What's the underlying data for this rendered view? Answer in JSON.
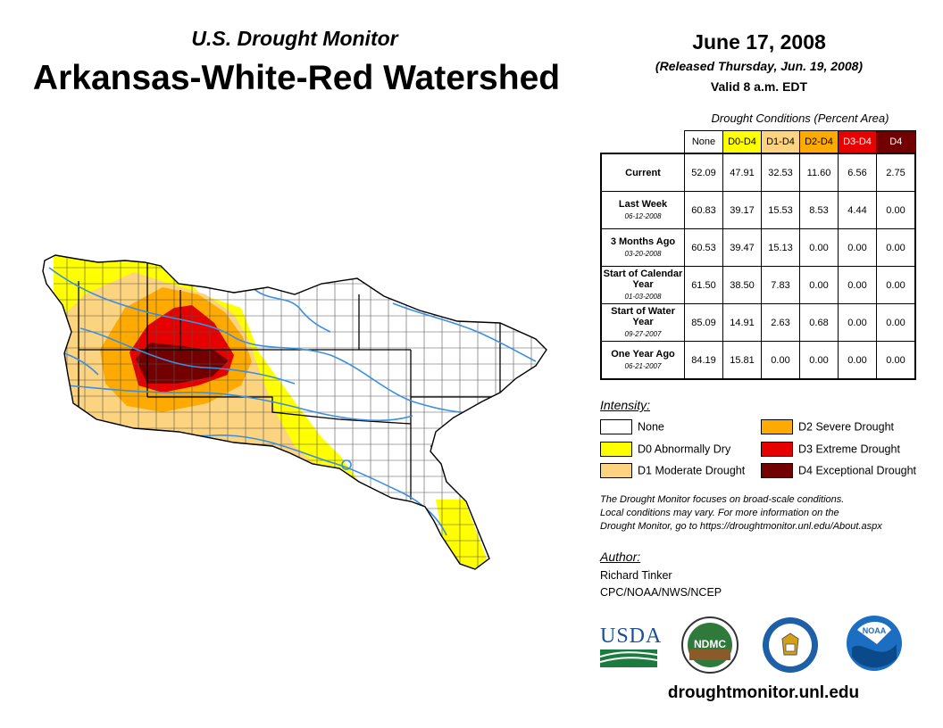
{
  "header": {
    "subtitle": "U.S. Drought Monitor",
    "title": "Arkansas-White-Red Watershed",
    "date": "June 17, 2008",
    "released": "(Released Thursday, Jun. 19, 2008)",
    "valid": "Valid 8 a.m. EDT"
  },
  "table": {
    "caption": "Drought Conditions (Percent Area)",
    "columns": [
      "None",
      "D0-D4",
      "D1-D4",
      "D2-D4",
      "D3-D4",
      "D4"
    ],
    "column_colors": [
      "#ffffff",
      "#ffff00",
      "#fcd37f",
      "#ffaa00",
      "#e60000",
      "#730000"
    ],
    "rows": [
      {
        "label": "Current",
        "sub": "",
        "values": [
          "52.09",
          "47.91",
          "32.53",
          "11.60",
          "6.56",
          "2.75"
        ]
      },
      {
        "label": "Last Week",
        "sub": "06-12-2008",
        "values": [
          "60.83",
          "39.17",
          "15.53",
          "8.53",
          "4.44",
          "0.00"
        ]
      },
      {
        "label": "3 Months Ago",
        "sub": "03-20-2008",
        "values": [
          "60.53",
          "39.47",
          "15.13",
          "0.00",
          "0.00",
          "0.00"
        ]
      },
      {
        "label": "Start of Calendar Year",
        "sub": "01-03-2008",
        "values": [
          "61.50",
          "38.50",
          "7.83",
          "0.00",
          "0.00",
          "0.00"
        ]
      },
      {
        "label": "Start of Water Year",
        "sub": "09-27-2007",
        "values": [
          "85.09",
          "14.91",
          "2.63",
          "0.68",
          "0.00",
          "0.00"
        ]
      },
      {
        "label": "One Year Ago",
        "sub": "06-21-2007",
        "values": [
          "84.19",
          "15.81",
          "0.00",
          "0.00",
          "0.00",
          "0.00"
        ]
      }
    ]
  },
  "legend": {
    "title": "Intensity:",
    "items": [
      {
        "label": "None",
        "color": "#ffffff"
      },
      {
        "label": "D0 Abnormally Dry",
        "color": "#ffff00"
      },
      {
        "label": "D1 Moderate Drought",
        "color": "#fcd37f"
      },
      {
        "label": "D2 Severe Drought",
        "color": "#ffaa00"
      },
      {
        "label": "D3 Extreme Drought",
        "color": "#e60000"
      },
      {
        "label": "D4 Exceptional Drought",
        "color": "#730000"
      }
    ]
  },
  "note": {
    "line1": "The Drought Monitor focuses on broad-scale conditions.",
    "line2": "Local conditions may vary. For more information on the",
    "line3": "Drought Monitor, go to https://droughtmonitor.unl.edu/About.aspx"
  },
  "author": {
    "title": "Author:",
    "name": "Richard Tinker",
    "org": "CPC/NOAA/NWS/NCEP"
  },
  "logos": {
    "usda": "USDA",
    "ndmc": "NDMC",
    "noaa": "NOAA"
  },
  "website": "droughtmonitor.unl.edu",
  "colors": {
    "river": "#3a8fe0",
    "county_border": "#555555",
    "state_border": "#000000"
  }
}
